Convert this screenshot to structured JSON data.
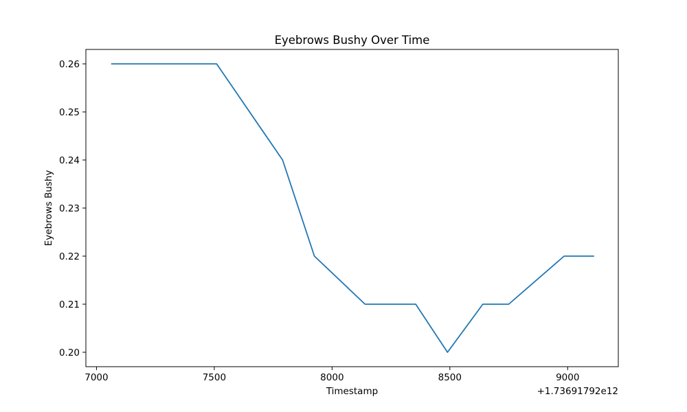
{
  "chart_data": {
    "type": "line",
    "title": "Eyebrows Bushy Over Time",
    "xlabel": "Timestamp",
    "ylabel": "Eyebrows Bushy",
    "x_offset_label": "+1.73691792e12",
    "x_ticks": [
      7000,
      7500,
      8000,
      8500,
      9000
    ],
    "y_ticks": [
      0.2,
      0.21,
      0.22,
      0.23,
      0.24,
      0.25,
      0.26
    ],
    "x_tick_labels": [
      "7000",
      "7500",
      "8000",
      "8500",
      "9000"
    ],
    "y_tick_labels": [
      "0.20",
      "0.21",
      "0.22",
      "0.23",
      "0.24",
      "0.25",
      "0.26"
    ],
    "xlim": [
      6955,
      9215
    ],
    "ylim": [
      0.197,
      0.263
    ],
    "grid": false,
    "legend": "none",
    "series": [
      {
        "color": "#1f77b4",
        "x": [
          7065,
          7510,
          7790,
          7925,
          8140,
          8355,
          8490,
          8640,
          8750,
          8985,
          9110
        ],
        "y": [
          0.26,
          0.26,
          0.24,
          0.22,
          0.21,
          0.21,
          0.2,
          0.21,
          0.21,
          0.22,
          0.22
        ]
      }
    ]
  }
}
